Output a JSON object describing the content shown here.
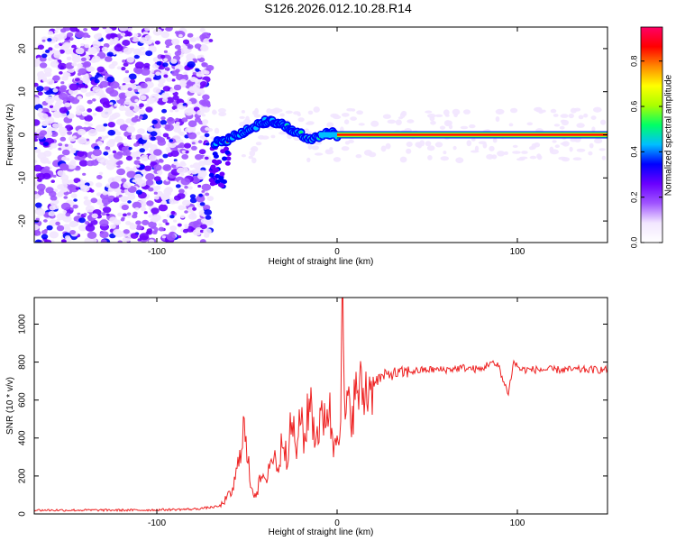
{
  "title": "S126.2026.012.10.28.R14",
  "colors": {
    "snr_line": "#ee2222",
    "axis": "#000000",
    "colormap": [
      "#ffffff",
      "#f2e6ff",
      "#a055ff",
      "#6a00ff",
      "#0000ff",
      "#00bfff",
      "#00ff66",
      "#aaff00",
      "#ffff00",
      "#ff8800",
      "#ff0000",
      "#ff0066"
    ]
  },
  "chart_data": [
    {
      "type": "heatmap",
      "name": "spectrogram",
      "title": "S126.2026.012.10.28.R14",
      "xlabel": "Height of straight line (km)",
      "ylabel": "Frequency (Hz)",
      "xlim": [
        -168,
        150
      ],
      "ylim": [
        -25,
        25
      ],
      "xticks": [
        -100,
        0,
        100
      ],
      "xtick_labels": [
        "-100",
        "0",
        "100"
      ],
      "yticks": [
        -20,
        -10,
        0,
        10,
        20
      ],
      "ytick_labels": [
        "-20",
        "-10",
        "0",
        "10",
        "20"
      ],
      "features": {
        "noise_region_x": [
          -168,
          -70
        ],
        "carrier_frequency_hz": 0,
        "carrier_start_x": -70,
        "carrier_deviation": [
          {
            "x": -68,
            "f": -2
          },
          {
            "x": -60,
            "f": -1
          },
          {
            "x": -50,
            "f": 1
          },
          {
            "x": -40,
            "f": 3
          },
          {
            "x": -32,
            "f": 3
          },
          {
            "x": -25,
            "f": 1
          },
          {
            "x": -15,
            "f": -1
          },
          {
            "x": -5,
            "f": 0.5
          },
          {
            "x": 0,
            "f": 0
          }
        ]
      },
      "colorbar": {
        "label": "Normalized spectral amplitude",
        "ticks": [
          0.0,
          0.2,
          0.4,
          0.6,
          0.8
        ],
        "tick_labels": [
          "0.0",
          "0.2",
          "0.4",
          "0.6",
          "0.8"
        ],
        "range": [
          0,
          0.95
        ]
      }
    },
    {
      "type": "line",
      "name": "snr",
      "xlabel": "Height of straight line (km)",
      "ylabel": "SNR (10 * v/v)",
      "xlim": [
        -168,
        150
      ],
      "ylim": [
        0,
        1140
      ],
      "xticks": [
        -100,
        0,
        100
      ],
      "xtick_labels": [
        "-100",
        "0",
        "100"
      ],
      "yticks": [
        0,
        200,
        400,
        600,
        800,
        1000
      ],
      "ytick_labels": [
        "0",
        "200",
        "400",
        "600",
        "800",
        "1000"
      ],
      "series": [
        {
          "name": "SNR",
          "x": [
            -168,
            -140,
            -110,
            -80,
            -65,
            -58,
            -55,
            -52,
            -50,
            -48,
            -46,
            -44,
            -42,
            -40,
            -38,
            -35,
            -32,
            -30,
            -28,
            -25,
            -22,
            -20,
            -18,
            -15,
            -12,
            -10,
            -8,
            -6,
            -4,
            -2,
            0,
            2,
            3,
            4,
            5,
            6,
            8,
            10,
            12,
            15,
            18,
            20,
            25,
            30,
            35,
            40,
            50,
            60,
            70,
            80,
            85,
            88,
            90,
            92,
            95,
            98,
            100,
            102,
            105,
            110,
            120,
            130,
            140,
            150
          ],
          "y": [
            20,
            20,
            20,
            25,
            40,
            120,
            250,
            480,
            300,
            180,
            100,
            130,
            200,
            150,
            260,
            300,
            250,
            440,
            320,
            470,
            330,
            540,
            380,
            620,
            400,
            470,
            480,
            580,
            520,
            350,
            520,
            440,
            1140,
            600,
            480,
            560,
            560,
            600,
            660,
            630,
            680,
            700,
            720,
            740,
            740,
            750,
            760,
            760,
            770,
            760,
            800,
            780,
            780,
            700,
            640,
            800,
            780,
            760,
            760,
            760,
            760,
            760,
            760,
            760
          ]
        }
      ]
    }
  ]
}
